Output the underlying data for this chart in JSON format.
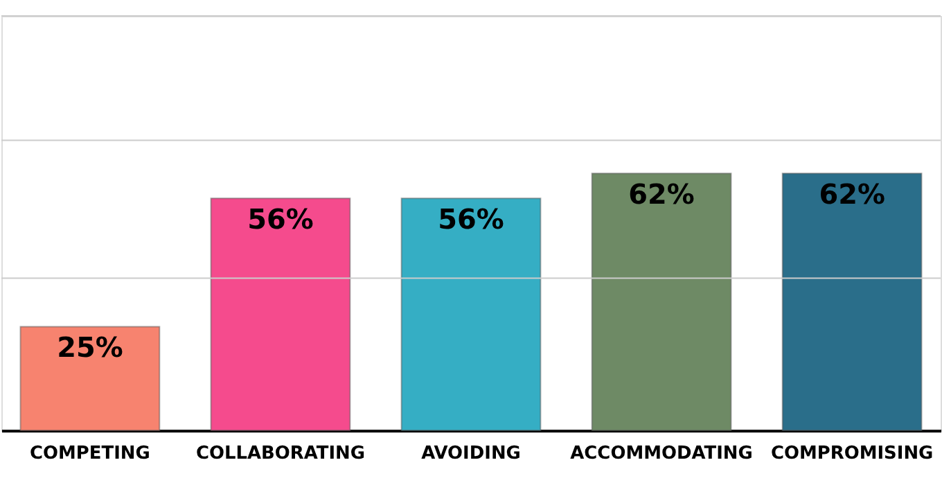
{
  "chart_data": {
    "type": "bar",
    "categories": [
      "COMPETING",
      "COLLABORATING",
      "AVOIDING",
      "ACCOMMODATING",
      "COMPROMISING"
    ],
    "values": [
      25,
      56,
      56,
      62,
      62
    ],
    "colors": [
      "#f7836f",
      "#f54b8d",
      "#35aec4",
      "#6e8a65",
      "#2a6e8a"
    ],
    "value_labels": [
      "25%",
      "56%",
      "56%",
      "62%",
      "62%"
    ],
    "ylim": [
      0,
      100
    ],
    "ref_lines": [
      {
        "axis": "y",
        "value": 36.7,
        "color": "#cccccc"
      },
      {
        "axis": "y",
        "value": 70,
        "color": "#cccccc"
      },
      {
        "axis": "y",
        "value": 100,
        "color": "#cccccc"
      }
    ],
    "tick_labels": "x"
  }
}
